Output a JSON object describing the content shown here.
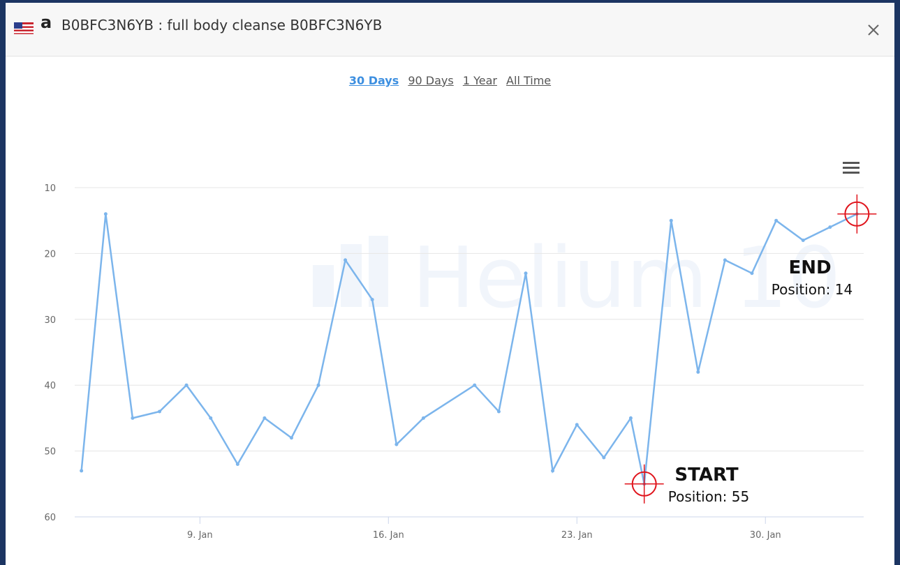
{
  "header": {
    "store_logo": "a",
    "title": "B0BFC3N6YB : full body cleanse B0BFC3N6YB"
  },
  "range_options": [
    "30 Days",
    "90 Days",
    "1 Year",
    "All Time"
  ],
  "watermark": "Helium 10",
  "chart_data": {
    "type": "line",
    "x": [
      4.6,
      5.5,
      6.5,
      7.5,
      8.5,
      9.4,
      10.4,
      11.4,
      12.4,
      13.4,
      14.4,
      15.4,
      16.3,
      17.3,
      19.2,
      20.1,
      21.1,
      22.1,
      23.0,
      24.0,
      25.0,
      25.5,
      26.5,
      27.5,
      28.5,
      29.5,
      30.4,
      31.4,
      32.4,
      33.4
    ],
    "series": [
      {
        "name": "Position",
        "color": "#7cb5ec",
        "values": [
          53,
          14,
          45,
          44,
          40,
          45,
          52,
          45,
          48,
          40,
          21,
          27,
          49,
          45,
          40,
          44,
          23,
          53,
          46,
          51,
          45,
          55,
          15,
          38,
          21,
          23,
          15,
          18,
          16,
          14
        ]
      }
    ],
    "xlim": [
      4.35,
      33.65
    ],
    "xticks": [
      {
        "value": 9,
        "label": "9. Jan"
      },
      {
        "value": 16,
        "label": "16. Jan"
      },
      {
        "value": 23,
        "label": "23. Jan"
      },
      {
        "value": 30,
        "label": "30. Jan"
      }
    ],
    "ylim": [
      60,
      10
    ],
    "yticks": [
      10,
      20,
      30,
      40,
      50,
      60
    ],
    "grid": true,
    "annotations": [
      {
        "title": "END",
        "text": "Position: 14"
      },
      {
        "title": "START",
        "text": "Position: 55"
      }
    ]
  }
}
